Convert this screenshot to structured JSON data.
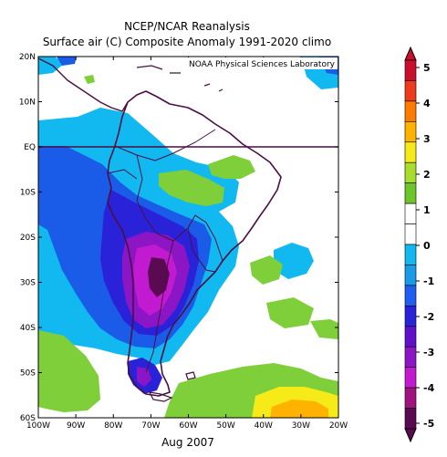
{
  "title_line1": "NCEP/NCAR Reanalysis",
  "title_line2": "Surface air (C) Composite Anomaly 1991-2020 climo",
  "credit": "NOAA Physical Sciences Laboratory",
  "date_label": "Aug 2007",
  "lat_labels": [
    "20N",
    "10N",
    "EQ",
    "10S",
    "20S",
    "30S",
    "40S",
    "50S",
    "60S"
  ],
  "lon_labels": [
    "100W",
    "90W",
    "80W",
    "70W",
    "60W",
    "50W",
    "40W",
    "30W",
    "20W"
  ],
  "colorbar": {
    "labels": [
      "5",
      "4",
      "3",
      "2",
      "1",
      "0",
      "-1",
      "-2",
      "-3",
      "-4",
      "-5"
    ],
    "colors": [
      "#c8102e",
      "#ee3b1c",
      "#ff7a00",
      "#ffb300",
      "#f6ea18",
      "#a8dd2c",
      "#6cc62a",
      "#ffffff",
      "#ffffff",
      "#12b8f0",
      "#1a9be8",
      "#1f5ef0",
      "#2a22d8",
      "#6010c8",
      "#8c16c6",
      "#c21ad0",
      "#a0127e",
      "#5a0a50"
    ]
  },
  "colors": {
    "coast": "#4a0f43",
    "land_anomaly_green": "#7fcf3a",
    "light_blue": "#12b8f0",
    "blue": "#1a5ce8",
    "deep_blue": "#2a22d8",
    "purple": "#8c16c6",
    "magenta": "#c21ad0",
    "dark_purple": "#5a0a50",
    "yellow": "#f6ea18",
    "orange": "#ffb300"
  }
}
